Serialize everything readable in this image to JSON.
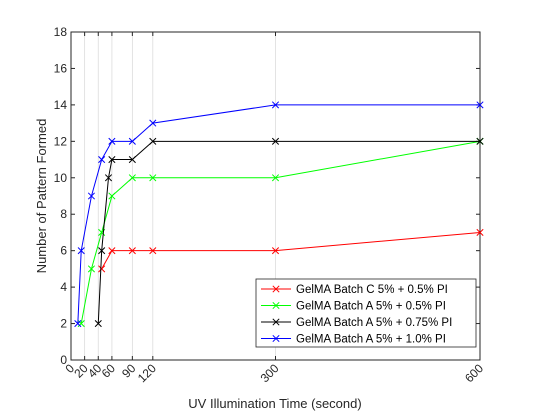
{
  "chart_data": {
    "type": "line",
    "xlabel": "UV Illumination Time (second)",
    "ylabel": "Number of Pattern Formed",
    "xlim": [
      0,
      600
    ],
    "ylim": [
      0,
      18
    ],
    "grid": "vertical",
    "legend_position": "bottom-right",
    "x_ticks": [
      0,
      20,
      40,
      60,
      90,
      120,
      300,
      600
    ],
    "y_ticks": [
      0,
      2,
      4,
      6,
      8,
      10,
      12,
      14,
      16,
      18
    ],
    "x_tick_labels": [
      "0",
      "20",
      "40",
      "60",
      "90",
      "120",
      "300",
      "600"
    ],
    "y_tick_labels": [
      "0",
      "2",
      "4",
      "6",
      "8",
      "10",
      "12",
      "14",
      "16",
      "18"
    ],
    "series": [
      {
        "name": "GelMA Batch C 5% + 0.5% PI",
        "color": "#ff0000",
        "x": [
          45,
          60,
          90,
          120,
          300,
          600
        ],
        "y": [
          5,
          6,
          6,
          6,
          6,
          7
        ]
      },
      {
        "name": "GelMA Batch A 5% + 0.5% PI",
        "color": "#00ff00",
        "x": [
          15,
          30,
          45,
          60,
          90,
          120,
          300,
          600
        ],
        "y": [
          2,
          5,
          7,
          9,
          10,
          10,
          10,
          12
        ]
      },
      {
        "name": "GelMA Batch A 5% + 0.75% PI",
        "color": "#000000",
        "x": [
          40,
          45,
          55,
          60,
          90,
          120,
          300,
          600
        ],
        "y": [
          2,
          6,
          10,
          11,
          11,
          12,
          12,
          12
        ]
      },
      {
        "name": "GelMA Batch A 5% + 1.0% PI",
        "color": "#0000ff",
        "x": [
          10,
          15,
          30,
          45,
          60,
          90,
          120,
          300,
          600
        ],
        "y": [
          2,
          6,
          9,
          11,
          12,
          12,
          13,
          14,
          14
        ]
      }
    ]
  }
}
